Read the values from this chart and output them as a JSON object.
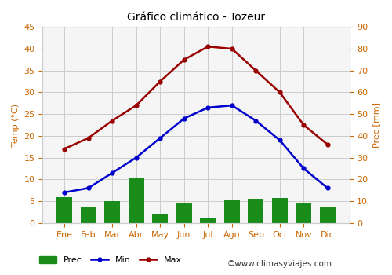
{
  "title": "Gráfico climático - Tozeur",
  "months": [
    "Ene",
    "Feb",
    "Mar",
    "Abr",
    "May",
    "Jun",
    "Jul",
    "Ago",
    "Sep",
    "Oct",
    "Nov",
    "Dic"
  ],
  "temp_max": [
    17,
    19.5,
    23.5,
    27,
    32.5,
    37.5,
    40.5,
    40,
    35,
    30,
    22.5,
    18
  ],
  "temp_min": [
    7,
    8,
    11.5,
    15,
    19.5,
    24,
    26.5,
    27,
    23.5,
    19,
    12.5,
    8
  ],
  "prec": [
    6,
    3.8,
    5,
    10.2,
    2,
    4.5,
    1,
    5.3,
    5.5,
    5.7,
    4.7,
    3.7
  ],
  "temp_color_max": "#990000",
  "temp_color_min": "#0000cc",
  "prec_color": "#1a8c1a",
  "background_color": "#ffffff",
  "plot_bg_color": "#f5f5f5",
  "grid_color": "#cccccc",
  "tick_color": "#cc6600",
  "label_color": "#cc6600",
  "ylabel_left": "Temp (°C)",
  "ylabel_right": "Prec [mm]",
  "ylim_left": [
    0,
    45
  ],
  "ylim_right": [
    0,
    90
  ],
  "yticks_left": [
    0,
    5,
    10,
    15,
    20,
    25,
    30,
    35,
    40,
    45
  ],
  "yticks_right": [
    0,
    10,
    20,
    30,
    40,
    50,
    60,
    70,
    80,
    90
  ],
  "watermark": "©www.climasyviajes.com",
  "legend_labels": [
    "Prec",
    "Min",
    "Max"
  ],
  "title_fontsize": 10,
  "axis_fontsize": 8,
  "tick_fontsize": 8
}
